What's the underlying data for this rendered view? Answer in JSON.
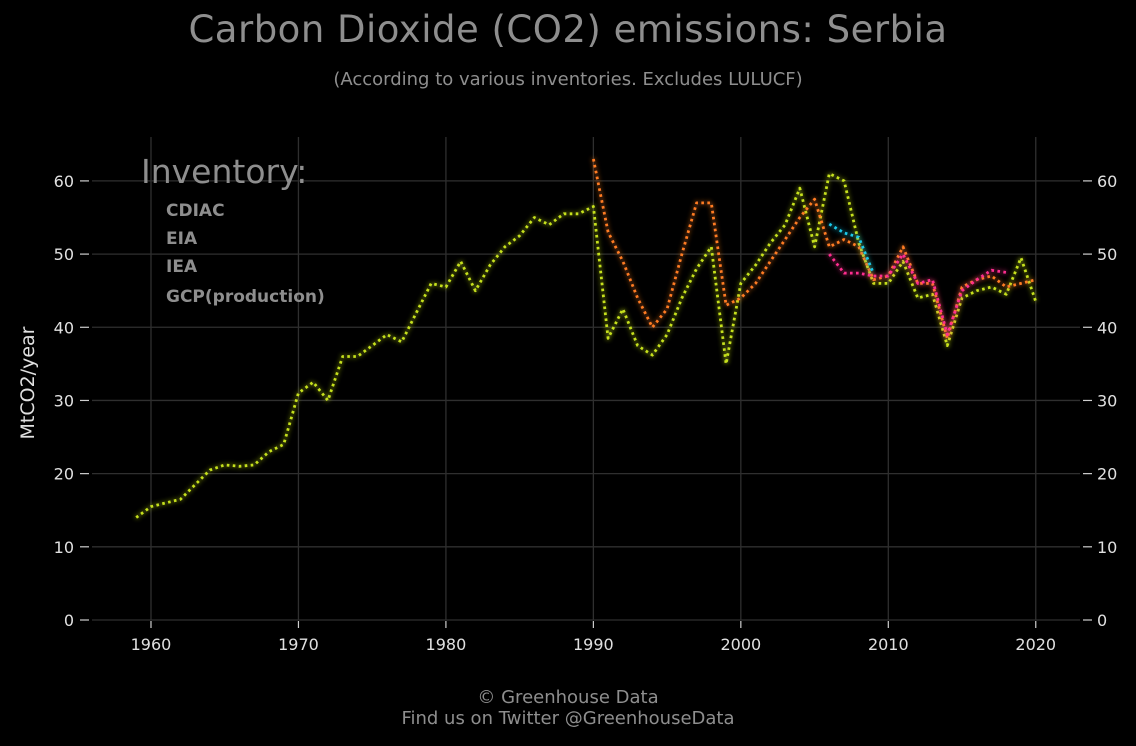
{
  "chart_data": {
    "type": "line",
    "title": "Carbon Dioxide (CO2) emissions: Serbia",
    "subtitle": "(According to various inventories. Excludes LULUCF)",
    "ylabel": "MtCO2/year",
    "xlim": [
      1956,
      2023
    ],
    "ylim": [
      0,
      66
    ],
    "x_ticks": [
      1960,
      1970,
      1980,
      1990,
      2000,
      2010,
      2020
    ],
    "y_ticks": [
      0,
      10,
      20,
      30,
      40,
      50,
      60
    ],
    "grid": true,
    "legend_title": "Inventory:",
    "legend_position": "top-left",
    "series": [
      {
        "name": "CDIAC",
        "color": "#1ec8e8",
        "points": [
          [
            2006,
            54.1
          ],
          [
            2007,
            52.9
          ],
          [
            2008,
            52.3
          ],
          [
            2009,
            47.3
          ]
        ]
      },
      {
        "name": "EIA",
        "color": "#ff2e8f",
        "points": [
          [
            2006,
            50.0
          ],
          [
            2007,
            47.4
          ],
          [
            2008,
            47.4
          ],
          [
            2009,
            47.0
          ],
          [
            2010,
            47.0
          ],
          [
            2011,
            50.0
          ],
          [
            2012,
            46.0
          ],
          [
            2013,
            46.5
          ],
          [
            2014,
            39.0
          ],
          [
            2015,
            45.0
          ],
          [
            2016,
            46.5
          ],
          [
            2017,
            47.8
          ],
          [
            2018,
            47.5
          ]
        ]
      },
      {
        "name": "IEA",
        "color": "#ff7b22",
        "points": [
          [
            1990,
            63.0
          ],
          [
            1991,
            53.0
          ],
          [
            1992,
            49.0
          ],
          [
            1993,
            44.0
          ],
          [
            1994,
            40.0
          ],
          [
            1995,
            42.5
          ],
          [
            1996,
            50.0
          ],
          [
            1997,
            57.0
          ],
          [
            1998,
            57.0
          ],
          [
            1999,
            43.0
          ],
          [
            2000,
            44.0
          ],
          [
            2001,
            46.0
          ],
          [
            2002,
            49.0
          ],
          [
            2003,
            52.0
          ],
          [
            2004,
            55.0
          ],
          [
            2005,
            57.5
          ],
          [
            2006,
            51.0
          ],
          [
            2007,
            52.0
          ],
          [
            2008,
            51.0
          ],
          [
            2009,
            46.5
          ],
          [
            2010,
            47.0
          ],
          [
            2011,
            51.0
          ],
          [
            2012,
            46.0
          ],
          [
            2013,
            46.0
          ],
          [
            2014,
            38.5
          ],
          [
            2015,
            45.5
          ],
          [
            2016,
            46.5
          ],
          [
            2017,
            47.0
          ],
          [
            2018,
            45.5
          ],
          [
            2019,
            46.0
          ],
          [
            2020,
            46.5
          ]
        ]
      },
      {
        "name": "GCP(production)",
        "color": "#c6e11e",
        "points": [
          [
            1959,
            14.0
          ],
          [
            1960,
            15.5
          ],
          [
            1961,
            16.0
          ],
          [
            1962,
            16.5
          ],
          [
            1963,
            18.5
          ],
          [
            1964,
            20.5
          ],
          [
            1965,
            21.2
          ],
          [
            1966,
            21.0
          ],
          [
            1967,
            21.2
          ],
          [
            1968,
            23.0
          ],
          [
            1969,
            24.0
          ],
          [
            1970,
            31.0
          ],
          [
            1971,
            32.5
          ],
          [
            1972,
            30.0
          ],
          [
            1973,
            36.0
          ],
          [
            1974,
            36.0
          ],
          [
            1975,
            37.5
          ],
          [
            1976,
            39.0
          ],
          [
            1977,
            38.0
          ],
          [
            1978,
            42.0
          ],
          [
            1979,
            46.0
          ],
          [
            1980,
            45.5
          ],
          [
            1981,
            49.0
          ],
          [
            1982,
            45.0
          ],
          [
            1983,
            48.5
          ],
          [
            1984,
            51.0
          ],
          [
            1985,
            52.5
          ],
          [
            1986,
            55.0
          ],
          [
            1987,
            54.0
          ],
          [
            1988,
            55.5
          ],
          [
            1989,
            55.5
          ],
          [
            1990,
            56.5
          ],
          [
            1991,
            38.5
          ],
          [
            1992,
            42.5
          ],
          [
            1993,
            37.5
          ],
          [
            1994,
            36.2
          ],
          [
            1995,
            39.0
          ],
          [
            1996,
            44.0
          ],
          [
            1997,
            48.0
          ],
          [
            1998,
            51.0
          ],
          [
            1999,
            35.0
          ],
          [
            2000,
            46.0
          ],
          [
            2001,
            48.5
          ],
          [
            2002,
            51.5
          ],
          [
            2003,
            54.0
          ],
          [
            2004,
            59.0
          ],
          [
            2005,
            51.0
          ],
          [
            2006,
            61.0
          ],
          [
            2007,
            60.0
          ],
          [
            2008,
            51.5
          ],
          [
            2009,
            46.0
          ],
          [
            2010,
            46.0
          ],
          [
            2011,
            49.0
          ],
          [
            2012,
            44.0
          ],
          [
            2013,
            44.5
          ],
          [
            2014,
            37.5
          ],
          [
            2015,
            44.0
          ],
          [
            2016,
            45.0
          ],
          [
            2017,
            45.5
          ],
          [
            2018,
            44.5
          ],
          [
            2019,
            49.5
          ],
          [
            2020,
            43.5
          ]
        ]
      }
    ]
  },
  "footer": {
    "line1": "© Greenhouse Data",
    "line2": "Find us on Twitter @GreenhouseData"
  },
  "colors": {
    "background": "#000000",
    "grid": "#2f2f2f",
    "axis_text": "#e0e0e0",
    "title_text": "#8e8e8e"
  }
}
